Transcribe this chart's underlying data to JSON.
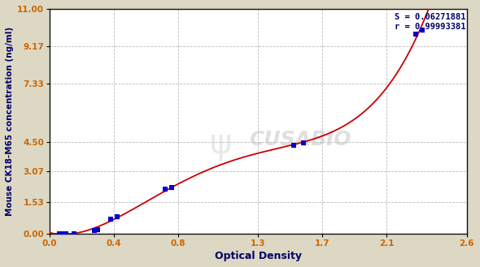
{
  "xlabel": "Optical Density",
  "ylabel": "Mouse CK18-M65 concentration (ng/ml)",
  "bg_color": "#ddd8c4",
  "plot_bg_color": "#ffffff",
  "x_data": [
    0.06,
    0.08,
    0.1,
    0.15,
    0.28,
    0.3,
    0.38,
    0.42,
    0.72,
    0.76,
    1.52,
    1.58,
    2.28,
    2.32
  ],
  "y_data": [
    0.0,
    0.0,
    0.0,
    0.0,
    0.15,
    0.2,
    0.72,
    0.83,
    2.17,
    2.25,
    4.33,
    4.45,
    9.78,
    9.95
  ],
  "xlim": [
    0.0,
    2.6
  ],
  "ylim": [
    0.0,
    11.0
  ],
  "xticks": [
    0.0,
    0.4,
    0.8,
    1.3,
    1.7,
    2.1,
    2.6
  ],
  "xticklabels": [
    "0.0",
    "0.4",
    "0.8",
    "1.3",
    "1.7",
    "2.1",
    "2.6"
  ],
  "yticks": [
    0.0,
    1.53,
    3.07,
    4.5,
    7.33,
    9.17,
    11.0
  ],
  "yticklabels": [
    "0.00",
    "1.53",
    "3.07",
    "4.50",
    "7.33",
    "9.17",
    "11.00"
  ],
  "annotation_line1": "S = 0.06271881",
  "annotation_line2": "r = 0.99993381",
  "dot_color": "#0000cc",
  "line_color": "#cc0000",
  "grid_color": "#aaaaaa",
  "tick_color": "#cc6600",
  "label_color": "#000066",
  "watermark": "CUSABIO"
}
